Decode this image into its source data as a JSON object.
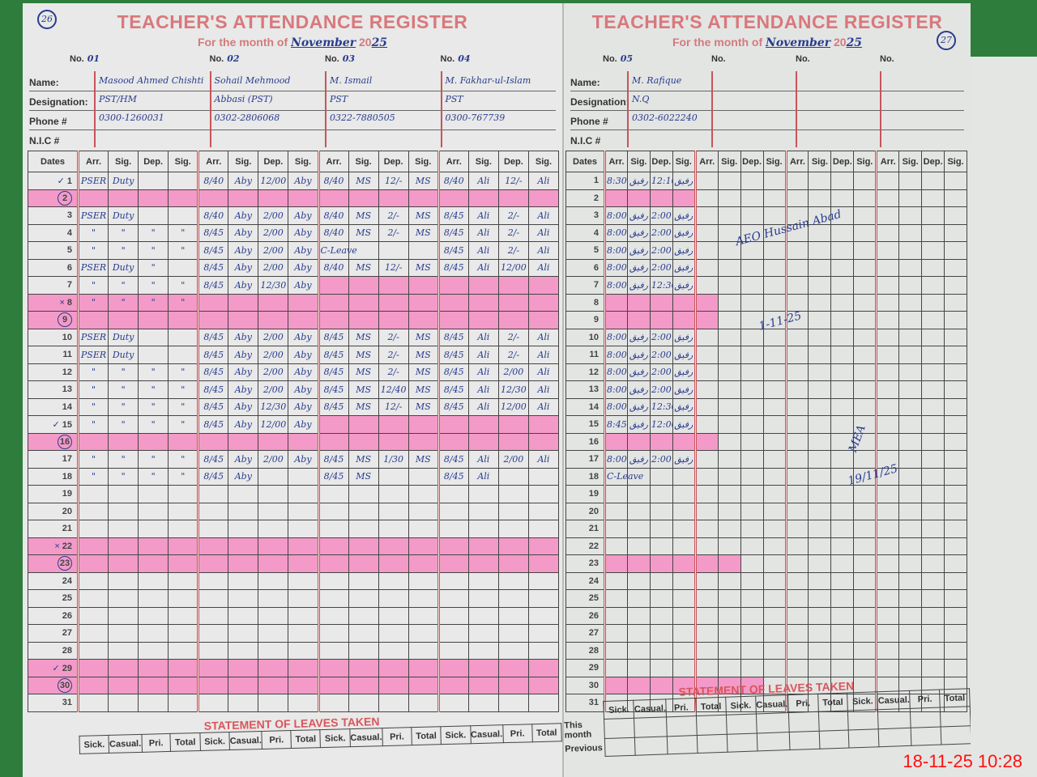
{
  "left_page": {
    "page_number": "26",
    "title": "TEACHER'S ATTENDANCE REGISTER",
    "month_label": "For the month of",
    "month": "November",
    "year_prefix": "20",
    "year": "25",
    "no_label": "No.",
    "field_labels": [
      "Name:",
      "Designation:",
      "Phone #",
      "N.I.C #"
    ],
    "teachers": [
      {
        "no": "01",
        "name": "Masood Ahmed Chishti",
        "designation": "PST/HM",
        "phone": "0300-1260031"
      },
      {
        "no": "02",
        "name": "Sohail Mehmood",
        "designation": "Abbasi (PST)",
        "phone": "0302-2806068"
      },
      {
        "no": "03",
        "name": "M. Ismail",
        "designation": "PST",
        "phone": "0322-7880505"
      },
      {
        "no": "04",
        "name": "M. Fakhar-ul-Islam",
        "designation": "PST",
        "phone": "0300-767739"
      }
    ],
    "dates_label": "Dates",
    "columns": [
      "Arr.",
      "Sig.",
      "Dep.",
      "Sig."
    ],
    "holiday_rows": [
      2,
      8,
      9,
      16,
      22,
      23,
      29,
      30
    ],
    "partial_holiday": {
      "7": [
        8,
        9,
        10,
        11,
        12,
        13,
        14,
        15
      ],
      "15": [
        8,
        9,
        10,
        11,
        12,
        13,
        14,
        15
      ]
    },
    "rows": [
      {
        "d": "1",
        "m": "✓",
        "c": [
          "PSER",
          "Duty",
          "",
          "",
          "8/40",
          "Aby",
          "12/00",
          "Aby",
          "8/40",
          "MS",
          "12/-",
          "MS",
          "8/40",
          "Ali",
          "12/-",
          "Ali"
        ]
      },
      {
        "d": "2",
        "circ": true,
        "c": []
      },
      {
        "d": "3",
        "c": [
          "PSER",
          "Duty",
          "",
          "",
          "8/40",
          "Aby",
          "2/00",
          "Aby",
          "8/40",
          "MS",
          "2/-",
          "MS",
          "8/45",
          "Ali",
          "2/-",
          "Ali"
        ]
      },
      {
        "d": "4",
        "c": [
          "\"",
          "\"",
          "\"",
          "\"",
          "8/45",
          "Aby",
          "2/00",
          "Aby",
          "8/40",
          "MS",
          "2/-",
          "MS",
          "8/45",
          "Ali",
          "2/-",
          "Ali"
        ]
      },
      {
        "d": "5",
        "c": [
          "\"",
          "\"",
          "\"",
          "\"",
          "8/45",
          "Aby",
          "2/00",
          "Aby",
          "C-Leave",
          "",
          "",
          "",
          "8/45",
          "Ali",
          "2/-",
          "Ali"
        ]
      },
      {
        "d": "6",
        "c": [
          "PSER",
          "Duty",
          "\"",
          "",
          "8/45",
          "Aby",
          "2/00",
          "Aby",
          "8/40",
          "MS",
          "12/-",
          "MS",
          "8/45",
          "Ali",
          "12/00",
          "Ali"
        ]
      },
      {
        "d": "7",
        "c": [
          "\"",
          "\"",
          "\"",
          "\"",
          "8/45",
          "Aby",
          "12/30",
          "Aby",
          "",
          "",
          "",
          "",
          "",
          "",
          "",
          ""
        ]
      },
      {
        "d": "8",
        "m": "×",
        "c": [
          "\"",
          "\"",
          "\"",
          "\""
        ]
      },
      {
        "d": "9",
        "circ": true,
        "c": []
      },
      {
        "d": "10",
        "c": [
          "PSER",
          "Duty",
          "",
          "",
          "8/45",
          "Aby",
          "2/00",
          "Aby",
          "8/45",
          "MS",
          "2/-",
          "MS",
          "8/45",
          "Ali",
          "2/-",
          "Ali"
        ]
      },
      {
        "d": "11",
        "c": [
          "PSER",
          "Duty",
          "",
          "",
          "8/45",
          "Aby",
          "2/00",
          "Aby",
          "8/45",
          "MS",
          "2/-",
          "MS",
          "8/45",
          "Ali",
          "2/-",
          "Ali"
        ]
      },
      {
        "d": "12",
        "c": [
          "\"",
          "\"",
          "\"",
          "\"",
          "8/45",
          "Aby",
          "2/00",
          "Aby",
          "8/45",
          "MS",
          "2/-",
          "MS",
          "8/45",
          "Ali",
          "2/00",
          "Ali"
        ]
      },
      {
        "d": "13",
        "c": [
          "\"",
          "\"",
          "\"",
          "\"",
          "8/45",
          "Aby",
          "2/00",
          "Aby",
          "8/45",
          "MS",
          "12/40",
          "MS",
          "8/45",
          "Ali",
          "12/30",
          "Ali"
        ]
      },
      {
        "d": "14",
        "c": [
          "\"",
          "\"",
          "\"",
          "\"",
          "8/45",
          "Aby",
          "12/30",
          "Aby",
          "8/45",
          "MS",
          "12/-",
          "MS",
          "8/45",
          "Ali",
          "12/00",
          "Ali"
        ]
      },
      {
        "d": "15",
        "m": "✓",
        "c": [
          "\"",
          "\"",
          "\"",
          "\"",
          "8/45",
          "Aby",
          "12/00",
          "Aby"
        ]
      },
      {
        "d": "16",
        "circ": true,
        "c": []
      },
      {
        "d": "17",
        "c": [
          "\"",
          "\"",
          "\"",
          "\"",
          "8/45",
          "Aby",
          "2/00",
          "Aby",
          "8/45",
          "MS",
          "1/30",
          "MS",
          "8/45",
          "Ali",
          "2/00",
          "Ali"
        ]
      },
      {
        "d": "18",
        "c": [
          "\"",
          "\"",
          "\"",
          "\"",
          "8/45",
          "Aby",
          "",
          "",
          "8/45",
          "MS",
          "",
          "",
          "8/45",
          "Ali",
          "",
          ""
        ]
      },
      {
        "d": "19",
        "c": []
      },
      {
        "d": "20",
        "c": []
      },
      {
        "d": "21",
        "c": []
      },
      {
        "d": "22",
        "m": "×",
        "c": []
      },
      {
        "d": "23",
        "circ": true,
        "c": []
      },
      {
        "d": "24",
        "c": []
      },
      {
        "d": "25",
        "c": []
      },
      {
        "d": "26",
        "c": []
      },
      {
        "d": "27",
        "c": []
      },
      {
        "d": "28",
        "c": []
      },
      {
        "d": "29",
        "m": "✓",
        "c": []
      },
      {
        "d": "30",
        "circ": true,
        "c": []
      },
      {
        "d": "31",
        "c": []
      }
    ],
    "statement_title": "STATEMENT OF LEAVES TAKEN",
    "statement_columns": [
      "Sick.",
      "Casual.",
      "Pri.",
      "Total"
    ]
  },
  "right_page": {
    "page_number": "27",
    "title": "TEACHER'S ATTENDANCE REGISTER",
    "month_label": "For the month of",
    "month": "November",
    "year_prefix": "20",
    "year": "25",
    "no_label": "No.",
    "field_labels": [
      "Name:",
      "Designation:",
      "Phone #",
      "N.I.C #"
    ],
    "teachers": [
      {
        "no": "05",
        "name": "M. Rafique",
        "designation": "N.Q",
        "phone": "0302-6022240"
      },
      {
        "no": "",
        "name": "",
        "designation": "",
        "phone": ""
      },
      {
        "no": "",
        "name": "",
        "designation": "",
        "phone": ""
      },
      {
        "no": "",
        "name": "",
        "designation": "",
        "phone": ""
      }
    ],
    "dates_label": "Dates",
    "columns": [
      "Arr.",
      "Sig.",
      "Dep.",
      "Sig."
    ],
    "holiday_rows": [],
    "partial_holiday": {
      "2": [
        0,
        1,
        2,
        3
      ],
      "8": [
        0,
        1,
        2,
        3,
        4
      ],
      "9": [
        0,
        1,
        2,
        3,
        4
      ],
      "16": [
        0,
        1,
        2,
        3,
        4
      ],
      "23": [
        0,
        1,
        2,
        3,
        4,
        5
      ],
      "30": [
        0,
        1,
        2,
        3,
        4,
        5,
        6
      ]
    },
    "rows": [
      {
        "d": "1",
        "c": [
          "8:30",
          "رفیق",
          "12:10",
          "رفیق"
        ]
      },
      {
        "d": "2",
        "c": []
      },
      {
        "d": "3",
        "c": [
          "8:00",
          "رفیق",
          "2:00",
          "رفیق"
        ]
      },
      {
        "d": "4",
        "c": [
          "8:00",
          "رفیق",
          "2:00",
          "رفیق"
        ]
      },
      {
        "d": "5",
        "c": [
          "8:00",
          "رفیق",
          "2:00",
          "رفیق"
        ]
      },
      {
        "d": "6",
        "c": [
          "8:00",
          "رفیق",
          "2:00",
          "رفیق"
        ]
      },
      {
        "d": "7",
        "c": [
          "8:00",
          "رفیق",
          "12:30",
          "رفیق"
        ]
      },
      {
        "d": "8",
        "c": []
      },
      {
        "d": "9",
        "c": []
      },
      {
        "d": "10",
        "c": [
          "8:00",
          "رفیق",
          "2:00",
          "رفیق"
        ]
      },
      {
        "d": "11",
        "c": [
          "8:00",
          "رفیق",
          "2:00",
          "رفیق"
        ]
      },
      {
        "d": "12",
        "c": [
          "8:00",
          "رفیق",
          "2:00",
          "رفیق"
        ]
      },
      {
        "d": "13",
        "c": [
          "8:00",
          "رفیق",
          "2:00",
          "رفیق"
        ]
      },
      {
        "d": "14",
        "c": [
          "8:00",
          "رفیق",
          "12:30",
          "رفیق"
        ]
      },
      {
        "d": "15",
        "c": [
          "8:45",
          "رفیق",
          "12:00",
          "رفیق"
        ]
      },
      {
        "d": "16",
        "c": []
      },
      {
        "d": "17",
        "c": [
          "8:00",
          "رفیق",
          "2:00",
          "رفیق"
        ]
      },
      {
        "d": "18",
        "c": [
          "C-Leave"
        ]
      },
      {
        "d": "19",
        "c": []
      },
      {
        "d": "20",
        "c": []
      },
      {
        "d": "21",
        "c": []
      },
      {
        "d": "22",
        "c": []
      },
      {
        "d": "23",
        "c": []
      },
      {
        "d": "24",
        "c": []
      },
      {
        "d": "25",
        "c": []
      },
      {
        "d": "26",
        "c": []
      },
      {
        "d": "27",
        "c": []
      },
      {
        "d": "28",
        "c": []
      },
      {
        "d": "29",
        "c": []
      },
      {
        "d": "30",
        "c": []
      },
      {
        "d": "31",
        "c": []
      }
    ],
    "remarks": [
      {
        "text": "AEO Hussain Abad"
      },
      {
        "text": "1-11-25"
      },
      {
        "text": "MEA"
      },
      {
        "text": "19/11/25"
      }
    ],
    "statement_title": "STATEMENT OF LEAVES TAKEN",
    "statement_columns": [
      "Sick.",
      "Casual.",
      "Pri.",
      "Total"
    ],
    "statement_rows": [
      "This month",
      "Previous"
    ]
  },
  "timestamp": "18-11-25  10:28",
  "colors": {
    "ink": "#2a3b8f",
    "highlight": "#f39ac8",
    "print": "#d9787c",
    "stamp": "#ff1010"
  }
}
